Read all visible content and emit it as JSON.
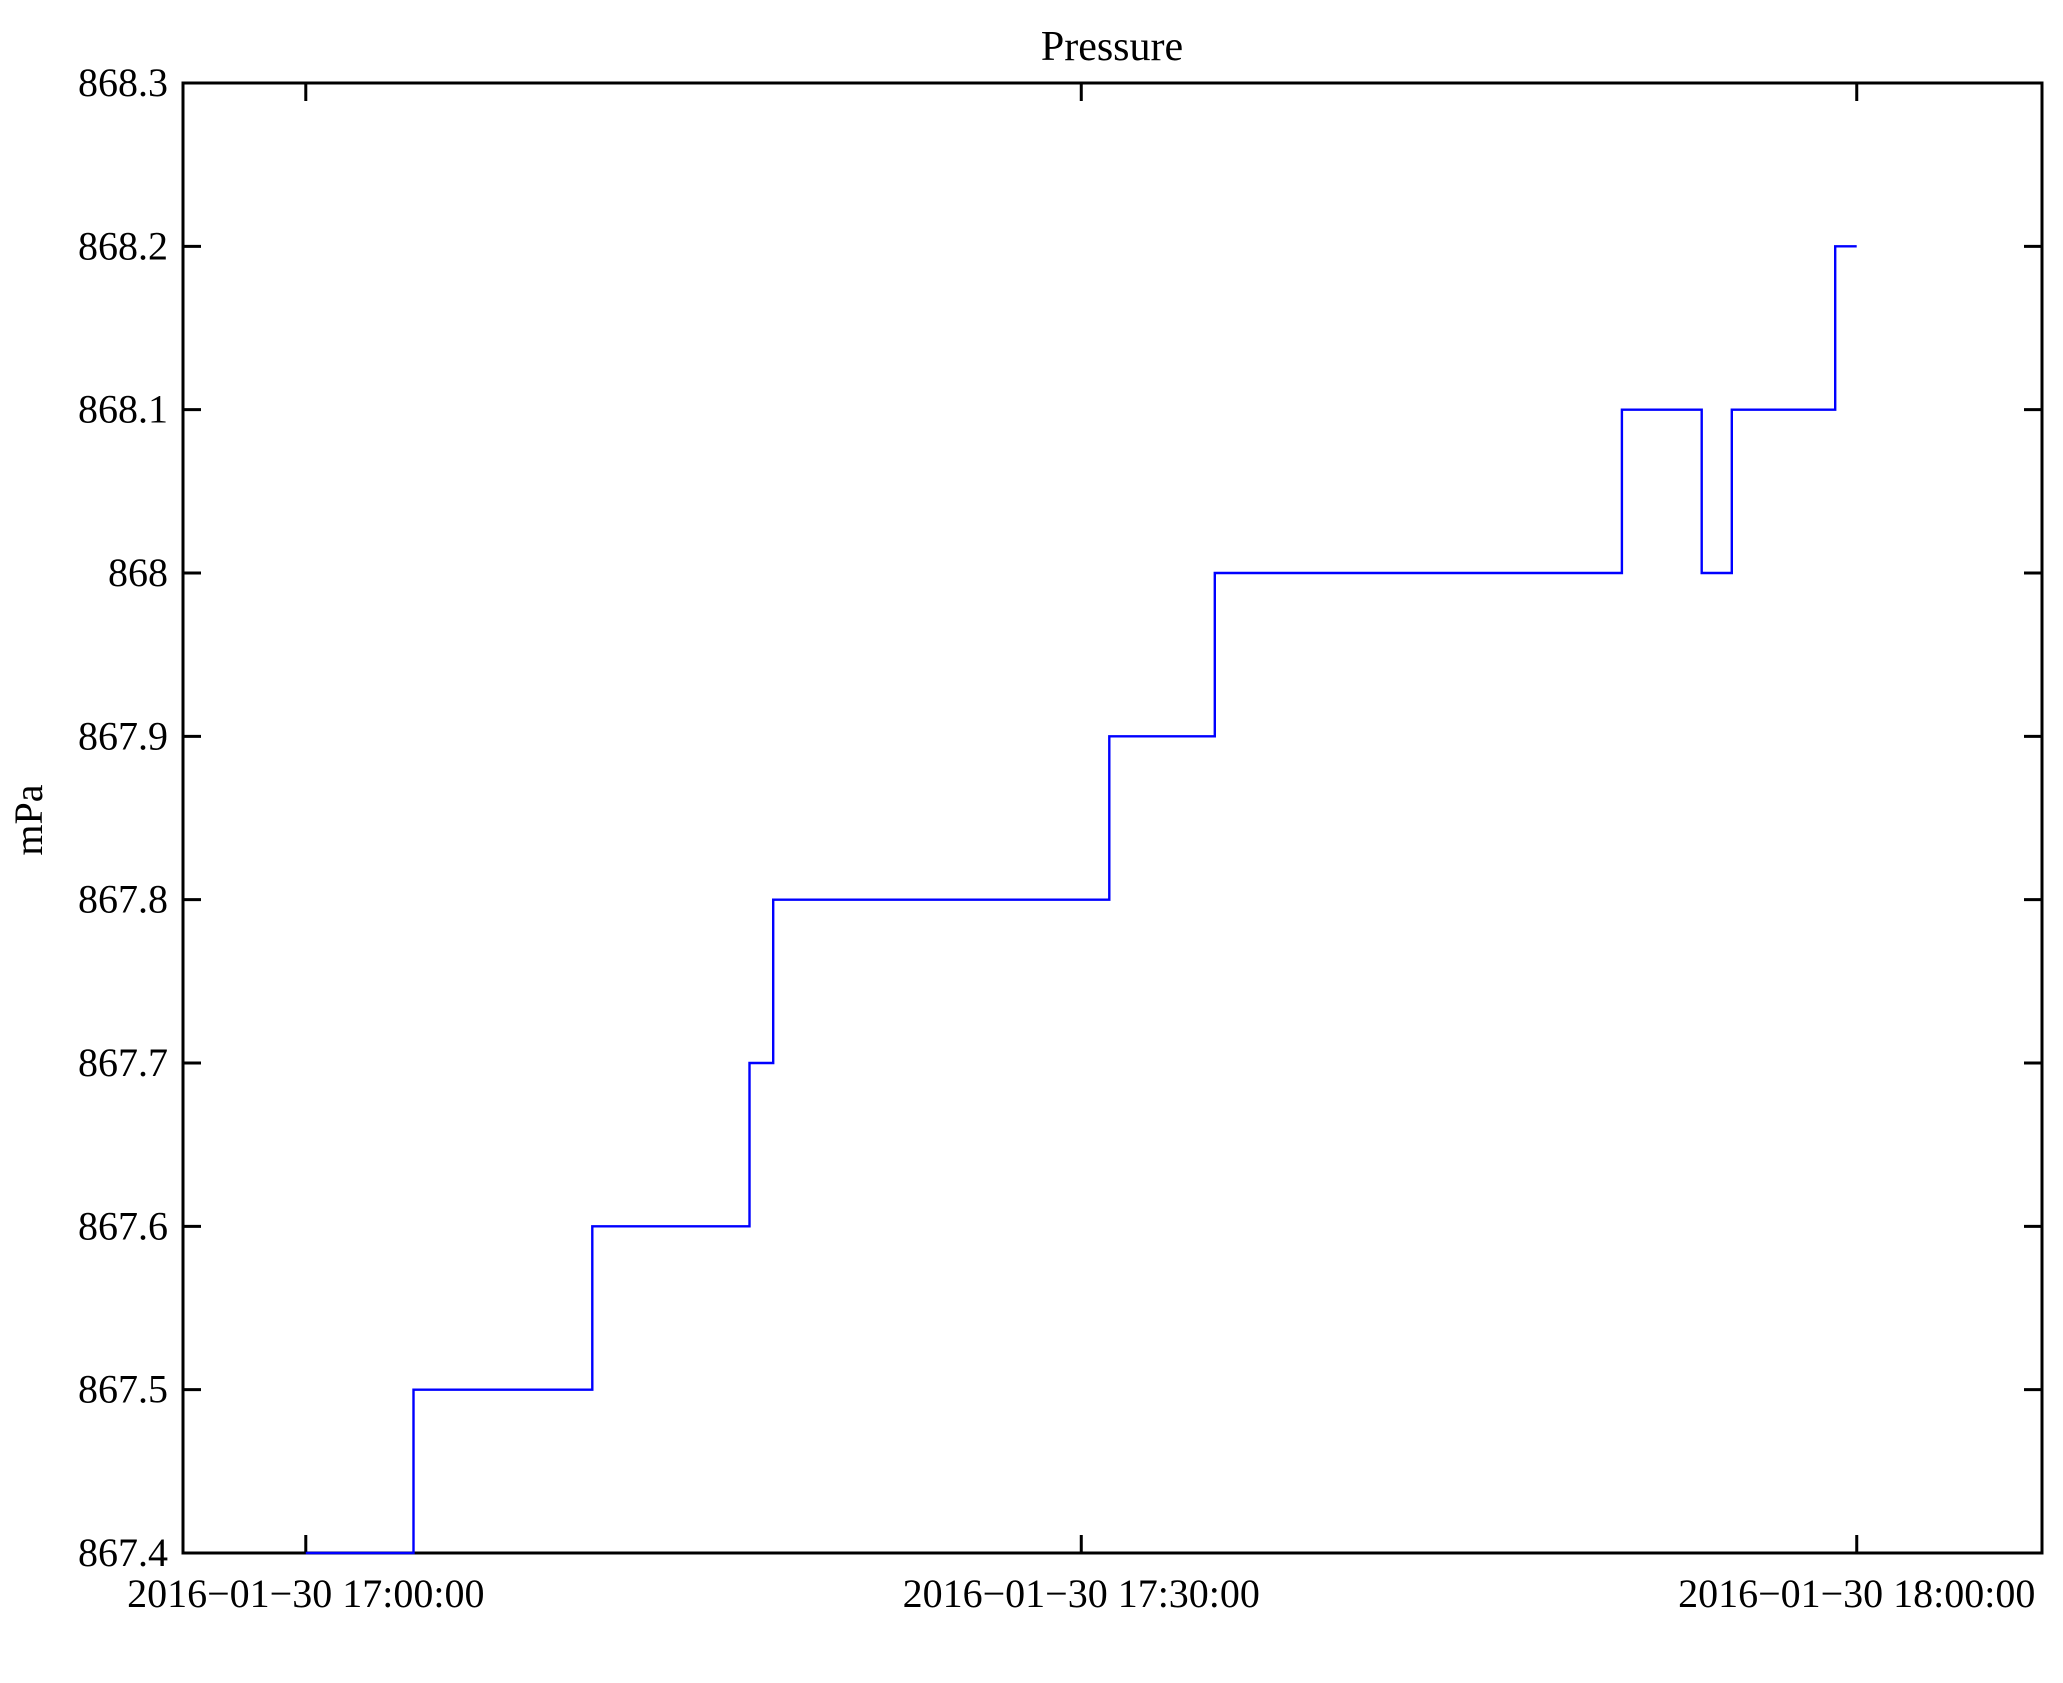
{
  "chart_data": {
    "type": "line",
    "step_mode": "post",
    "title": "Pressure",
    "xlabel": "",
    "ylabel": "mPa",
    "legend": "none",
    "grid": false,
    "background_color": "#ffffff",
    "axis_color": "#000000",
    "series_color": "#0000ff",
    "ylim": [
      867.4,
      868.3
    ],
    "y_ticks": [
      867.4,
      867.5,
      867.6,
      867.7,
      867.8,
      867.9,
      868.0,
      868.1,
      868.2,
      868.3
    ],
    "y_tick_labels": [
      "867.4",
      "867.5",
      "867.6",
      "867.7",
      "867.8",
      "867.9",
      "868",
      "868.1",
      "868.2",
      "868.3"
    ],
    "x_domain": [
      "16:55:15",
      "18:07:10"
    ],
    "x_ticks": [
      "17:00:00",
      "17:30:00",
      "18:00:00"
    ],
    "x_tick_labels": [
      "2016−01−30 17:00:00",
      "2016−01−30 17:30:00",
      "2016−01−30 18:00:00"
    ],
    "series": [
      {
        "name": "Pressure",
        "unit": "mPa",
        "points": [
          [
            "17:00:00",
            867.4
          ],
          [
            "17:04:10",
            867.5
          ],
          [
            "17:11:05",
            867.6
          ],
          [
            "17:17:10",
            867.7
          ],
          [
            "17:18:05",
            867.8
          ],
          [
            "17:31:05",
            867.9
          ],
          [
            "17:35:10",
            868.0
          ],
          [
            "17:50:55",
            868.1
          ],
          [
            "17:54:00",
            868.0
          ],
          [
            "17:55:10",
            868.1
          ],
          [
            "17:59:10",
            868.2
          ]
        ],
        "end_time": "18:00:00"
      }
    ]
  }
}
